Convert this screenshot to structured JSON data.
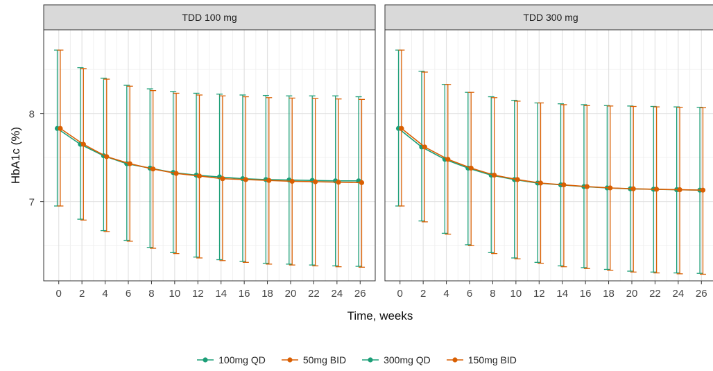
{
  "chart_data": {
    "type": "line",
    "ylabel": "HbA1c (%)",
    "xlabel": "Time, weeks",
    "x_ticks": [
      0,
      2,
      4,
      6,
      8,
      10,
      12,
      14,
      16,
      18,
      20,
      22,
      24,
      26
    ],
    "y_ticks": [
      7,
      8
    ],
    "xlim": [
      -1.3,
      27.3
    ],
    "ylim": [
      6.1,
      8.95
    ],
    "grid": true,
    "legend_position": "bottom",
    "x": [
      0,
      2,
      4,
      6,
      8,
      10,
      12,
      14,
      16,
      18,
      20,
      22,
      24,
      26
    ],
    "panels": [
      {
        "title": "TDD 100 mg",
        "series": [
          {
            "name": "100mg QD",
            "color": "#1b9e77",
            "mean": [
              7.83,
              7.65,
              7.52,
              7.43,
              7.38,
              7.33,
              7.3,
              7.28,
              7.26,
              7.25,
              7.245,
              7.24,
              7.235,
              7.235
            ],
            "upper": [
              8.72,
              8.52,
              8.4,
              8.32,
              8.28,
              8.25,
              8.23,
              8.22,
              8.21,
              8.205,
              8.2,
              8.2,
              8.2,
              8.19
            ],
            "lower": [
              6.95,
              6.8,
              6.67,
              6.56,
              6.48,
              6.42,
              6.37,
              6.34,
              6.32,
              6.3,
              6.29,
              6.28,
              6.27,
              6.265
            ]
          },
          {
            "name": "50mg BID",
            "color": "#d95f02",
            "mean": [
              7.83,
              7.65,
              7.51,
              7.43,
              7.37,
              7.32,
              7.29,
              7.26,
              7.25,
              7.24,
              7.23,
              7.225,
              7.22,
              7.215
            ],
            "upper": [
              8.72,
              8.51,
              8.39,
              8.31,
              8.26,
              8.23,
              8.21,
              8.2,
              8.19,
              8.18,
              8.175,
              8.17,
              8.165,
              8.16
            ],
            "lower": [
              6.95,
              6.79,
              6.66,
              6.55,
              6.47,
              6.41,
              6.36,
              6.33,
              6.31,
              6.29,
              6.28,
              6.27,
              6.26,
              6.255
            ]
          }
        ]
      },
      {
        "title": "TDD 300 mg",
        "series": [
          {
            "name": "300mg QD",
            "color": "#1b9e77",
            "mean": [
              7.83,
              7.62,
              7.48,
              7.38,
              7.3,
              7.25,
              7.21,
              7.19,
              7.17,
              7.155,
              7.145,
              7.14,
              7.135,
              7.13
            ],
            "upper": [
              8.72,
              8.48,
              8.33,
              8.24,
              8.19,
              8.15,
              8.12,
              8.11,
              8.1,
              8.09,
              8.085,
              8.08,
              8.075,
              8.07
            ],
            "lower": [
              6.95,
              6.78,
              6.64,
              6.51,
              6.42,
              6.36,
              6.31,
              6.27,
              6.25,
              6.23,
              6.21,
              6.2,
              6.19,
              6.185
            ]
          },
          {
            "name": "150mg BID",
            "color": "#d95f02",
            "mean": [
              7.83,
              7.62,
              7.48,
              7.38,
              7.3,
              7.25,
              7.21,
              7.19,
              7.17,
              7.155,
              7.145,
              7.14,
              7.135,
              7.13
            ],
            "upper": [
              8.72,
              8.47,
              8.33,
              8.24,
              8.18,
              8.14,
              8.12,
              8.1,
              8.09,
              8.085,
              8.08,
              8.075,
              8.07,
              8.065
            ],
            "lower": [
              6.95,
              6.77,
              6.63,
              6.5,
              6.41,
              6.35,
              6.3,
              6.26,
              6.24,
              6.22,
              6.2,
              6.19,
              6.18,
              6.175
            ]
          }
        ]
      }
    ],
    "legend": [
      {
        "label": "100mg QD",
        "color": "#1b9e77"
      },
      {
        "label": "50mg BID",
        "color": "#d95f02"
      },
      {
        "label": "300mg QD",
        "color": "#1b9e77"
      },
      {
        "label": "150mg BID",
        "color": "#d95f02"
      }
    ]
  }
}
